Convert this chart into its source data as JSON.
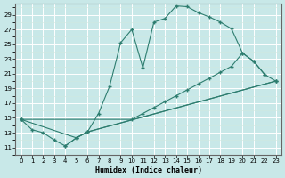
{
  "xlabel": "Humidex (Indice chaleur)",
  "bg_color": "#c8e8e8",
  "line_color": "#2d7d6f",
  "grid_color": "#b8d8d8",
  "xlim": [
    -0.5,
    23.5
  ],
  "ylim": [
    10.0,
    30.5
  ],
  "xticks": [
    0,
    1,
    2,
    3,
    4,
    5,
    6,
    7,
    8,
    9,
    10,
    11,
    12,
    13,
    14,
    15,
    16,
    17,
    18,
    19,
    20,
    21,
    22,
    23
  ],
  "yticks": [
    11,
    13,
    15,
    17,
    19,
    21,
    23,
    25,
    27,
    29
  ],
  "line1_x": [
    0,
    1,
    2,
    3,
    4,
    5,
    6,
    7,
    8,
    9,
    10,
    11,
    12,
    13,
    14,
    15,
    16,
    17,
    18,
    19,
    20,
    21,
    22
  ],
  "line1_y": [
    14.8,
    13.4,
    13.0,
    12.0,
    11.2,
    12.3,
    13.1,
    15.6,
    19.3,
    25.2,
    27.0,
    21.8,
    28.0,
    28.5,
    30.2,
    30.1,
    29.3,
    28.7,
    28.0,
    27.1,
    23.8,
    22.7,
    20.9
  ],
  "line2_x": [
    0,
    5,
    6,
    23
  ],
  "line2_y": [
    14.8,
    12.3,
    13.1,
    20.0
  ],
  "line3_x": [
    4,
    5,
    6,
    23
  ],
  "line3_y": [
    11.2,
    12.3,
    13.1,
    20.0
  ],
  "line4_x": [
    0,
    10,
    11,
    12,
    13,
    14,
    15,
    16,
    17,
    18,
    19,
    20,
    21,
    22,
    23
  ],
  "line4_y": [
    14.8,
    14.8,
    15.6,
    16.4,
    17.2,
    18.0,
    18.8,
    19.6,
    20.4,
    21.2,
    22.0,
    23.8,
    22.7,
    20.9,
    20.0
  ]
}
